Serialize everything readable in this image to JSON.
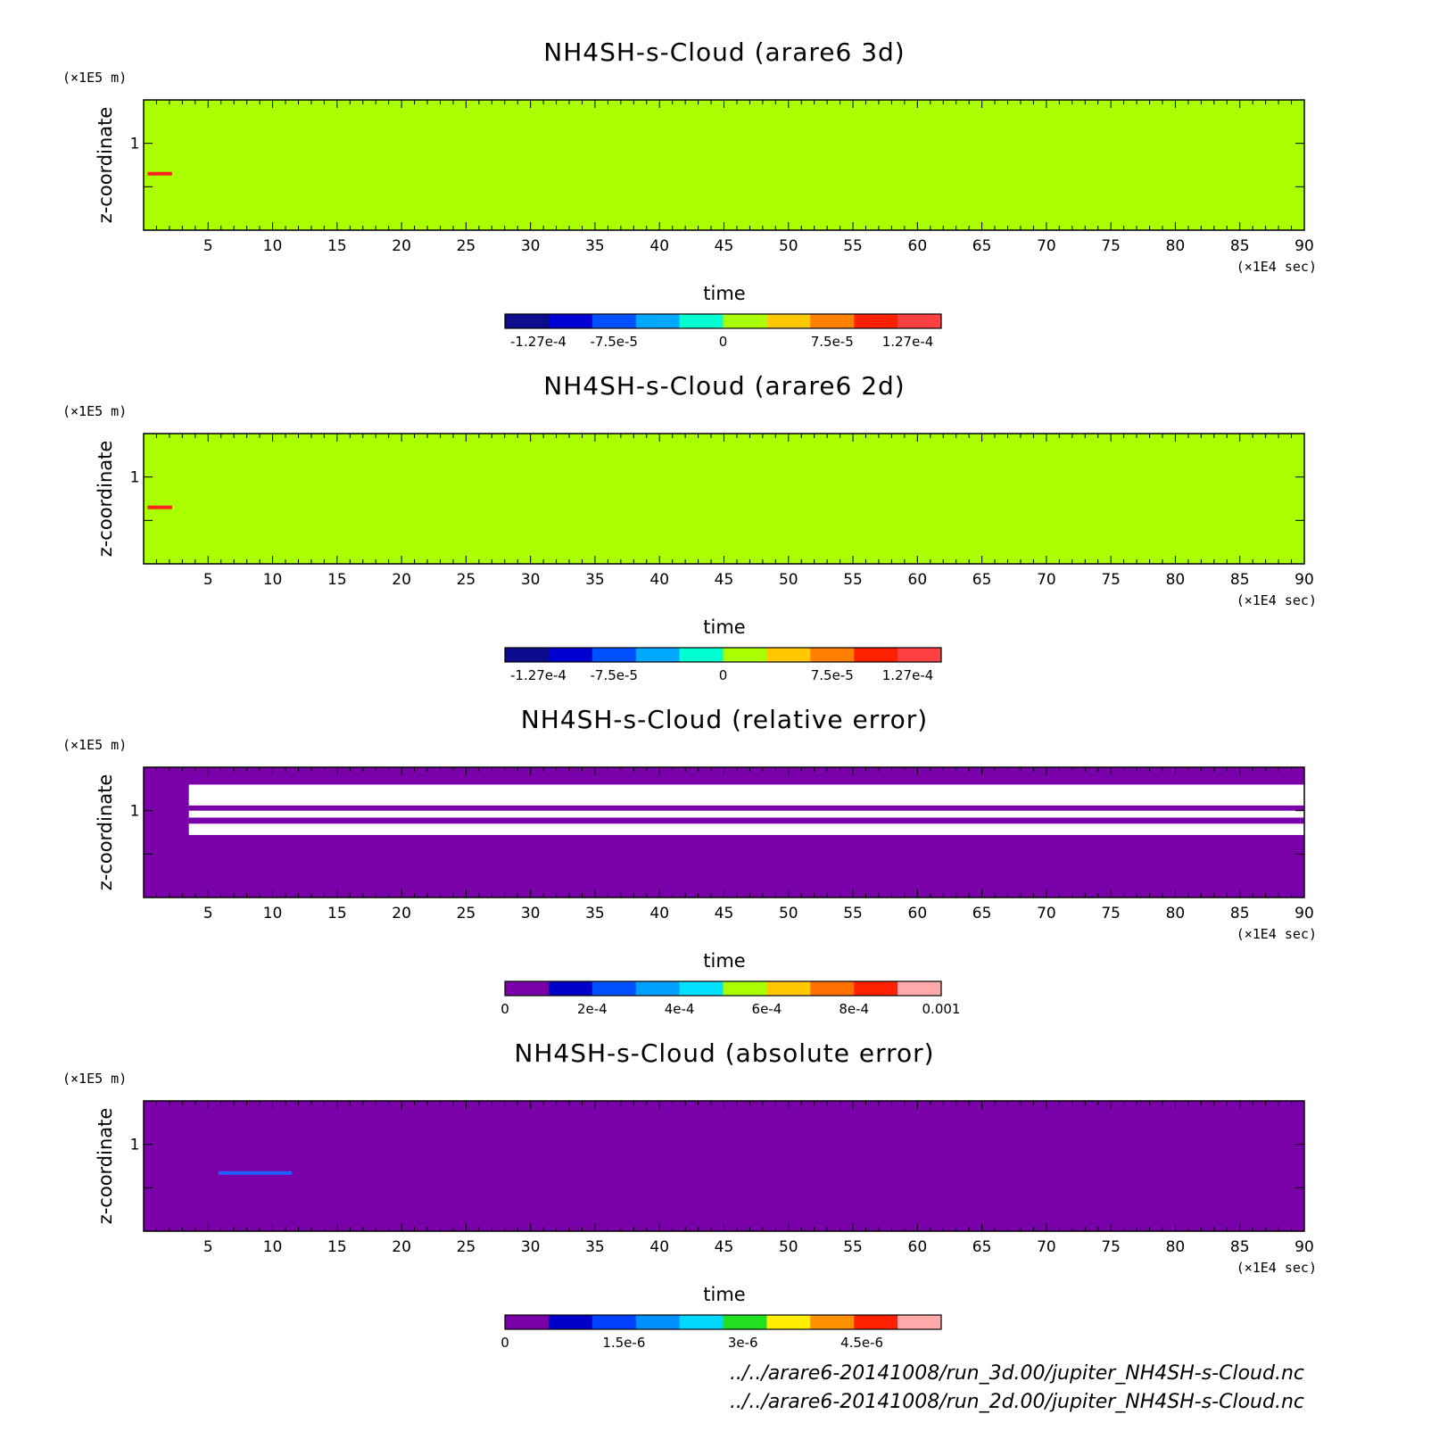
{
  "chart_data": [
    {
      "type": "heatmap",
      "title": "NH4SH-s-Cloud (arare6 3d)",
      "xlabel": "time",
      "x_unit": "(×1E4 sec)",
      "ylabel": "z-coordinate",
      "y_unit": "(×1E5 m)",
      "xlim": [
        0,
        90
      ],
      "ylim": [
        0,
        1.5
      ],
      "x_ticks": [
        "5",
        "10",
        "15",
        "20",
        "25",
        "30",
        "35",
        "40",
        "45",
        "50",
        "55",
        "60",
        "65",
        "70",
        "75",
        "80",
        "85",
        "90"
      ],
      "y_ticks": [
        "1"
      ],
      "background_color": "#aaff00",
      "regions": [
        {
          "x": [
            0.3,
            2.2
          ],
          "y": [
            0.65,
            0.65
          ],
          "color": "#ff2020",
          "desc": "small positive values"
        }
      ],
      "colorbar": {
        "colors": [
          "#0b0b8e",
          "#0000d0",
          "#0050ff",
          "#00a8ff",
          "#00ffd0",
          "#aaff00",
          "#ffc800",
          "#ff8000",
          "#ff2000",
          "#ff4040"
        ],
        "labels": [
          "-1.27e-4",
          "-7.5e-5",
          "0",
          "7.5e-5",
          "1.27e-4"
        ],
        "label_positions": [
          -0.000127,
          -7.5e-05,
          0,
          7.5e-05,
          0.000127
        ],
        "range": [
          -0.00015,
          0.00015
        ]
      }
    },
    {
      "type": "heatmap",
      "title": "NH4SH-s-Cloud (arare6 2d)",
      "xlabel": "time",
      "x_unit": "(×1E4 sec)",
      "ylabel": "z-coordinate",
      "y_unit": "(×1E5 m)",
      "xlim": [
        0,
        90
      ],
      "ylim": [
        0,
        1.5
      ],
      "x_ticks": [
        "5",
        "10",
        "15",
        "20",
        "25",
        "30",
        "35",
        "40",
        "45",
        "50",
        "55",
        "60",
        "65",
        "70",
        "75",
        "80",
        "85",
        "90"
      ],
      "y_ticks": [
        "1"
      ],
      "background_color": "#aaff00",
      "regions": [
        {
          "x": [
            0.3,
            2.2
          ],
          "y": [
            0.65,
            0.65
          ],
          "color": "#ff2020",
          "desc": "small positive values"
        }
      ],
      "colorbar": {
        "colors": [
          "#0b0b8e",
          "#0000d0",
          "#0050ff",
          "#00a8ff",
          "#00ffd0",
          "#aaff00",
          "#ffc800",
          "#ff8000",
          "#ff2000",
          "#ff4040"
        ],
        "labels": [
          "-1.27e-4",
          "-7.5e-5",
          "0",
          "7.5e-5",
          "1.27e-4"
        ],
        "label_positions": [
          -0.000127,
          -7.5e-05,
          0,
          7.5e-05,
          0.000127
        ],
        "range": [
          -0.00015,
          0.00015
        ]
      }
    },
    {
      "type": "heatmap",
      "title": "NH4SH-s-Cloud (relative error)",
      "xlabel": "time",
      "x_unit": "(×1E4 sec)",
      "ylabel": "z-coordinate",
      "y_unit": "(×1E5 m)",
      "xlim": [
        0,
        90
      ],
      "ylim": [
        0,
        1.5
      ],
      "x_ticks": [
        "5",
        "10",
        "15",
        "20",
        "25",
        "30",
        "35",
        "40",
        "45",
        "50",
        "55",
        "60",
        "65",
        "70",
        "75",
        "80",
        "85",
        "90"
      ],
      "y_ticks": [
        "1"
      ],
      "background_color": "#7a00aa",
      "regions": [
        {
          "x": [
            3.5,
            90
          ],
          "y": [
            0.72,
            1.3
          ],
          "color": "#ffffff",
          "desc": "undefined / white band"
        },
        {
          "x": [
            3.5,
            90
          ],
          "y": [
            1.0,
            1.06
          ],
          "color": "#7a00aa",
          "desc": "purple stripe"
        },
        {
          "x": [
            3.5,
            90
          ],
          "y": [
            0.85,
            0.92
          ],
          "color": "#7a00aa",
          "desc": "purple stripe"
        },
        {
          "x": [
            0,
            3.5
          ],
          "y": [
            0.6,
            1.3
          ],
          "color": "#7a00aa",
          "desc": "early region"
        }
      ],
      "colorbar": {
        "colors": [
          "#7a00aa",
          "#0000c8",
          "#0050ff",
          "#00a0ff",
          "#00e0ff",
          "#aaff00",
          "#ffc800",
          "#ff7000",
          "#ff2000",
          "#ffaaaa"
        ],
        "labels": [
          "0",
          "2e-4",
          "4e-4",
          "6e-4",
          "8e-4",
          "0.001"
        ],
        "label_positions": [
          0,
          0.0002,
          0.0004,
          0.0006,
          0.0008,
          0.001
        ],
        "range": [
          0,
          0.001
        ]
      }
    },
    {
      "type": "heatmap",
      "title": "NH4SH-s-Cloud (absolute error)",
      "xlabel": "time",
      "x_unit": "(×1E4 sec)",
      "ylabel": "z-coordinate",
      "y_unit": "(×1E5 m)",
      "xlim": [
        0,
        90
      ],
      "ylim": [
        0,
        1.5
      ],
      "x_ticks": [
        "5",
        "10",
        "15",
        "20",
        "25",
        "30",
        "35",
        "40",
        "45",
        "50",
        "55",
        "60",
        "65",
        "70",
        "75",
        "80",
        "85",
        "90"
      ],
      "y_ticks": [
        "1"
      ],
      "background_color": "#7a00aa",
      "regions": [
        {
          "x": [
            5.8,
            11.5
          ],
          "y": [
            0.67,
            0.67
          ],
          "color": "#2060ff",
          "desc": "tiny error specks"
        }
      ],
      "colorbar": {
        "colors": [
          "#7a00aa",
          "#0000c8",
          "#0040ff",
          "#0090ff",
          "#00d8ff",
          "#20e020",
          "#ffee00",
          "#ff9000",
          "#ff2000",
          "#ffaaaa"
        ],
        "labels": [
          "0",
          "1.5e-6",
          "3e-6",
          "4.5e-6"
        ],
        "label_positions": [
          0,
          1.5e-06,
          3e-06,
          4.5e-06
        ],
        "range": [
          0,
          5.5e-06
        ]
      }
    }
  ],
  "footer": {
    "line1": "../../arare6-20141008/run_3d.00/jupiter_NH4SH-s-Cloud.nc",
    "line2": "../../arare6-20141008/run_2d.00/jupiter_NH4SH-s-Cloud.nc"
  }
}
